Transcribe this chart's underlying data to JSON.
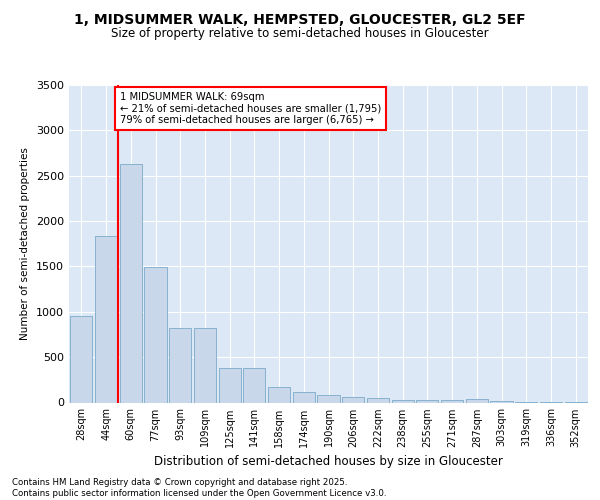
{
  "title": "1, MIDSUMMER WALK, HEMPSTED, GLOUCESTER, GL2 5EF",
  "subtitle": "Size of property relative to semi-detached houses in Gloucester",
  "xlabel": "Distribution of semi-detached houses by size in Gloucester",
  "ylabel": "Number of semi-detached properties",
  "categories": [
    "28sqm",
    "44sqm",
    "60sqm",
    "77sqm",
    "93sqm",
    "109sqm",
    "125sqm",
    "141sqm",
    "158sqm",
    "174sqm",
    "190sqm",
    "206sqm",
    "222sqm",
    "238sqm",
    "255sqm",
    "271sqm",
    "287sqm",
    "303sqm",
    "319sqm",
    "336sqm",
    "352sqm"
  ],
  "values": [
    950,
    1840,
    2630,
    1490,
    820,
    820,
    375,
    375,
    175,
    120,
    80,
    60,
    45,
    30,
    25,
    25,
    40,
    15,
    10,
    10,
    10
  ],
  "bar_color": "#c8d8ea",
  "bar_edge_color": "#7aaac8",
  "vline_color": "red",
  "vline_pos": 1.5,
  "property_label": "1 MIDSUMMER WALK: 69sqm",
  "smaller_text": "← 21% of semi-detached houses are smaller (1,795)",
  "larger_text": "79% of semi-detached houses are larger (6,765) →",
  "ylim": [
    0,
    3500
  ],
  "yticks": [
    0,
    500,
    1000,
    1500,
    2000,
    2500,
    3000,
    3500
  ],
  "footer1": "Contains HM Land Registry data © Crown copyright and database right 2025.",
  "footer2": "Contains public sector information licensed under the Open Government Licence v3.0.",
  "plot_bg": "#dce8f5",
  "grid_color": "#ffffff",
  "title_fontsize": 10,
  "subtitle_fontsize": 8.5
}
